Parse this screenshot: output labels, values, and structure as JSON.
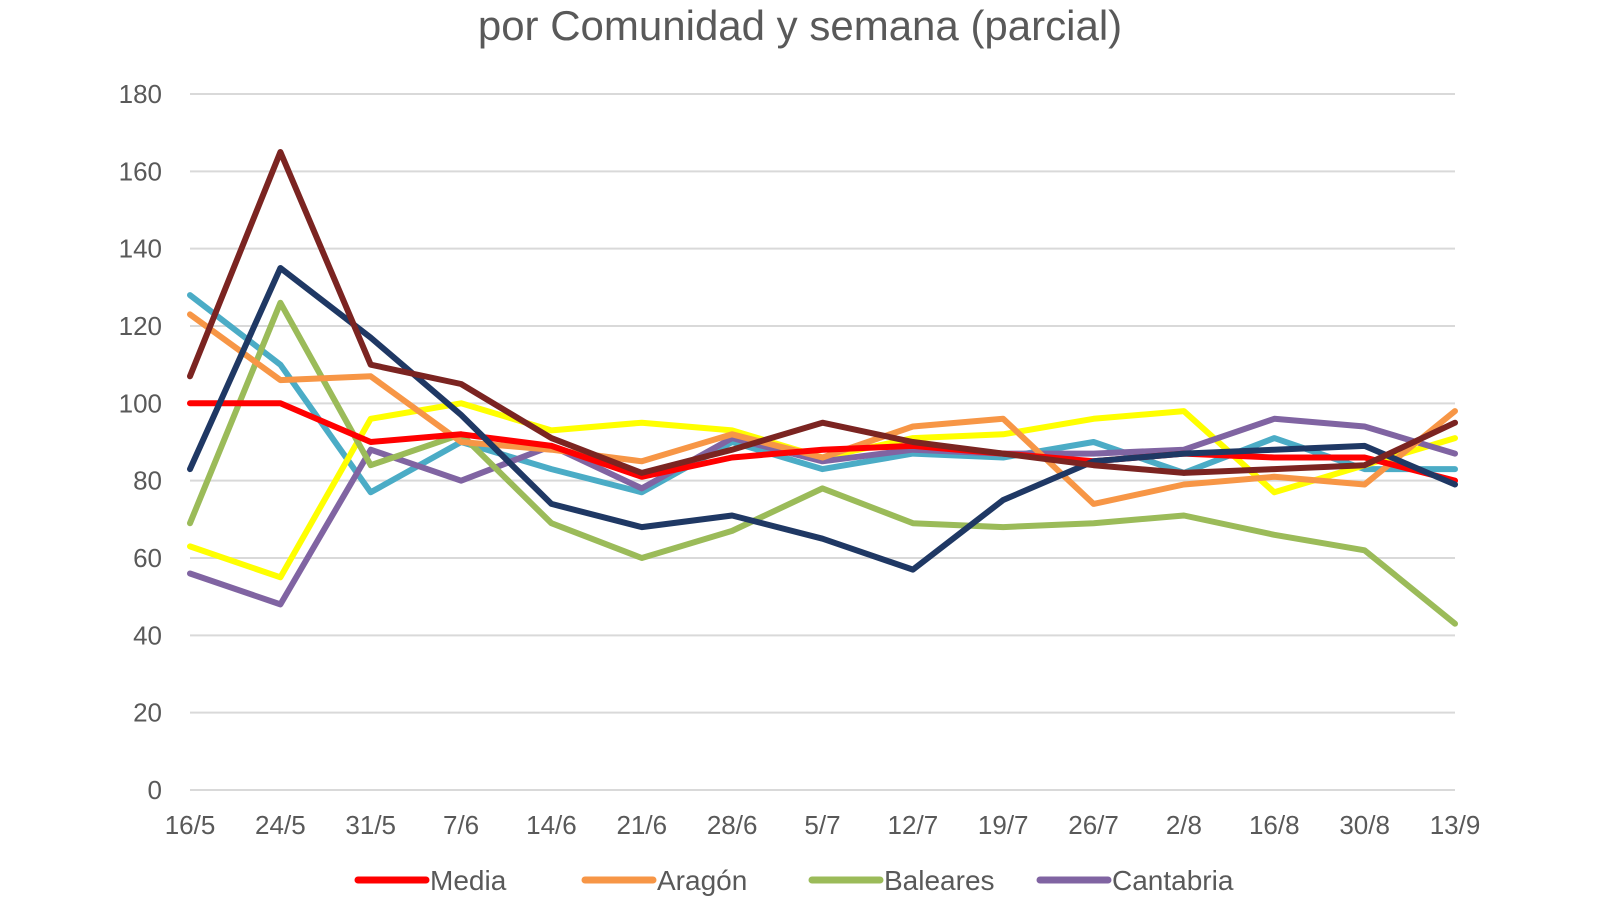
{
  "chart_data": {
    "type": "line",
    "title": "por Comunidad y semana (parcial)",
    "xlabel": "",
    "ylabel": "",
    "ylim": [
      0,
      180
    ],
    "yticks": [
      0,
      20,
      40,
      60,
      80,
      100,
      120,
      140,
      160,
      180
    ],
    "grid": true,
    "legend_position": "bottom",
    "categories": [
      "16/5",
      "24/5",
      "31/5",
      "7/6",
      "14/6",
      "21/6",
      "28/6",
      "5/7",
      "12/7",
      "19/7",
      "26/7",
      "2/8",
      "16/8",
      "30/8",
      "13/9"
    ],
    "series": [
      {
        "name": "",
        "color": "#4bacc6",
        "in_legend": false,
        "values": [
          128,
          110,
          77,
          90,
          83,
          77,
          90,
          83,
          87,
          86,
          90,
          82,
          91,
          83,
          83
        ]
      },
      {
        "name": "",
        "color": "#ffff00",
        "in_legend": false,
        "values": [
          63,
          55,
          96,
          100,
          93,
          95,
          93,
          86,
          91,
          92,
          96,
          98,
          77,
          84,
          91
        ]
      },
      {
        "name": "Cantabria",
        "color": "#8064a2",
        "in_legend": true,
        "values": [
          56,
          48,
          88,
          80,
          89,
          78,
          91,
          85,
          88,
          87,
          87,
          88,
          96,
          94,
          87
        ]
      },
      {
        "name": "Baleares",
        "color": "#9bbb59",
        "in_legend": true,
        "values": [
          69,
          126,
          84,
          92,
          69,
          60,
          67,
          78,
          69,
          68,
          69,
          71,
          66,
          62,
          43
        ]
      },
      {
        "name": "Aragón",
        "color": "#f79646",
        "in_legend": true,
        "values": [
          123,
          106,
          107,
          90,
          88,
          85,
          92,
          86,
          94,
          96,
          74,
          79,
          81,
          79,
          98
        ]
      },
      {
        "name": "Media",
        "color": "#ff0000",
        "in_legend": true,
        "values": [
          100,
          100,
          90,
          92,
          89,
          81,
          86,
          88,
          89,
          87,
          85,
          87,
          86,
          86,
          80
        ]
      },
      {
        "name": "",
        "color": "#1f3864",
        "in_legend": false,
        "values": [
          83,
          135,
          117,
          97,
          74,
          68,
          71,
          65,
          57,
          75,
          85,
          87,
          88,
          89,
          79
        ]
      },
      {
        "name": "",
        "color": "#7b2421",
        "in_legend": false,
        "values": [
          107,
          165,
          110,
          105,
          91,
          82,
          88,
          95,
          90,
          87,
          84,
          82,
          83,
          84,
          95
        ]
      }
    ],
    "legend": [
      "Media",
      "Aragón",
      "Baleares",
      "Cantabria"
    ]
  }
}
